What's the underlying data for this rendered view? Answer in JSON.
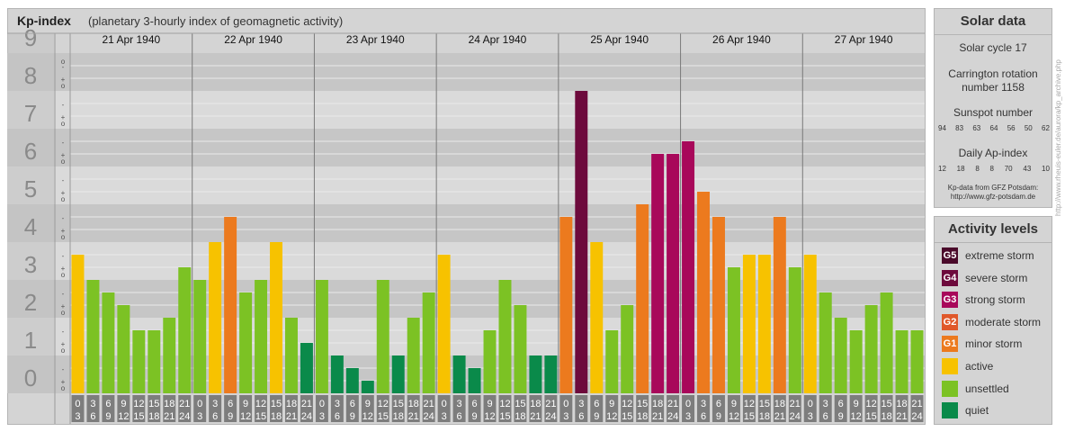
{
  "header": {
    "title": "Kp-index",
    "subtitle": "(planetary 3-hourly index of geomagnetic activity)"
  },
  "solar": {
    "heading": "Solar data",
    "cycle": "Solar cycle 17",
    "carrington_1": "Carrington rotation",
    "carrington_2": "number 1158",
    "sunspot_label": "Sunspot number",
    "sunspot_values": [
      "94",
      "83",
      "63",
      "64",
      "56",
      "50",
      "62"
    ],
    "ap_label": "Daily Ap-index",
    "ap_values": [
      "12",
      "18",
      "8",
      "8",
      "70",
      "43",
      "10"
    ],
    "credit_1": "Kp-data from GFZ Potsdam:",
    "credit_2": "http://www.gfz-potsdam.de"
  },
  "activity": {
    "heading": "Activity levels",
    "items": [
      {
        "badge": "G5",
        "label": "extreme storm",
        "color": "#4a0a2a"
      },
      {
        "badge": "G4",
        "label": "severe storm",
        "color": "#6d0a3c"
      },
      {
        "badge": "G3",
        "label": "strong storm",
        "color": "#a8085a"
      },
      {
        "badge": "G2",
        "label": "moderate storm",
        "color": "#e0582a"
      },
      {
        "badge": "G1",
        "label": "minor storm",
        "color": "#ec7a1e"
      },
      {
        "badge": "",
        "label": "active",
        "color": "#f7c200"
      },
      {
        "badge": "",
        "label": "unsettled",
        "color": "#7cc224"
      },
      {
        "badge": "",
        "label": "quiet",
        "color": "#0a8a4a"
      }
    ]
  },
  "side_url": "http://www.rheuis-euler.de/aurora/kp_archive.php",
  "chart_data": {
    "type": "bar",
    "title": "Kp-index",
    "ylim": [
      0,
      9
    ],
    "y_ticks": [
      "0",
      "1",
      "2",
      "3",
      "4",
      "5",
      "6",
      "7",
      "8",
      "9"
    ],
    "minor_marks": [
      "+",
      "o",
      "-"
    ],
    "days": [
      "21 Apr 1940",
      "22 Apr 1940",
      "23 Apr 1940",
      "24 Apr 1940",
      "25 Apr 1940",
      "26 Apr 1940",
      "27 Apr 1940"
    ],
    "interval_start": [
      "0",
      "3",
      "6",
      "9",
      "12",
      "15",
      "18",
      "21"
    ],
    "interval_end": [
      "3",
      "6",
      "9",
      "12",
      "15",
      "18",
      "21",
      "24"
    ],
    "values": [
      3.667,
      3.0,
      2.667,
      2.333,
      1.667,
      1.667,
      2.0,
      3.333,
      3.0,
      4.0,
      4.667,
      2.667,
      3.0,
      4.0,
      2.0,
      1.333,
      3.0,
      1.0,
      0.667,
      0.333,
      3.0,
      1.0,
      2.0,
      2.667,
      3.667,
      1.0,
      0.667,
      1.667,
      3.0,
      2.333,
      1.0,
      1.0,
      4.667,
      8.0,
      4.0,
      1.667,
      2.333,
      5.0,
      6.333,
      6.333,
      6.667,
      5.333,
      4.667,
      3.333,
      3.667,
      3.667,
      4.667,
      3.333,
      3.667,
      2.667,
      2.0,
      1.667,
      2.333,
      2.667,
      1.667,
      1.667
    ],
    "level_colors": {
      "quiet": "#0a8a4a",
      "unsettled": "#7cc224",
      "active": "#f7c200",
      "minor": "#ec7a1e",
      "moderate": "#e0582a",
      "strong": "#a8085a",
      "severe": "#6d0a3c",
      "extreme": "#4a0a2a"
    }
  }
}
